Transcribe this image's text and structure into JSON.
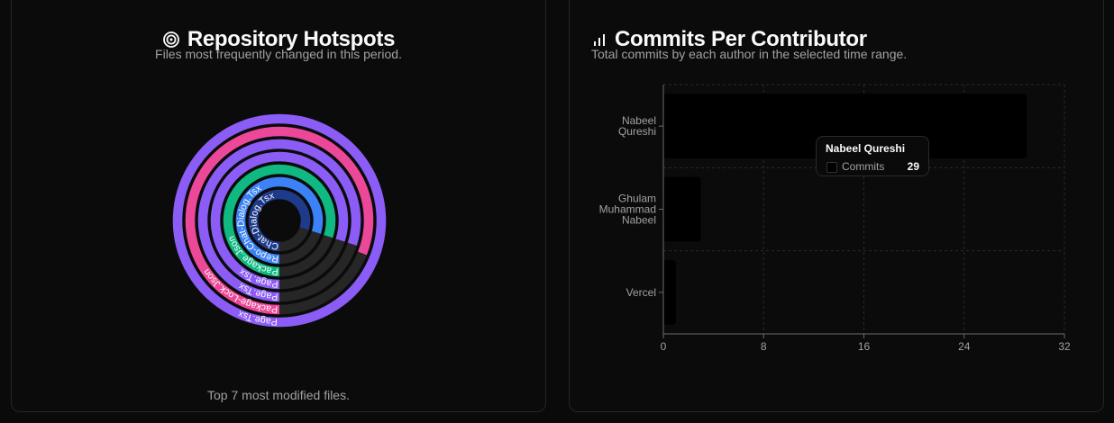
{
  "hotspots": {
    "title": "Repository Hotspots",
    "subtitle": "Files most frequently changed in this period.",
    "footer": "Top 7 most modified files.",
    "icon": "target-icon",
    "chart_data": {
      "type": "radial-bar",
      "title": "",
      "rings_outer_to_inner": [
        {
          "label": "Page.Tsx",
          "fraction": 1.0,
          "color": "#8b5cf6"
        },
        {
          "label": "Package-Lock.Json",
          "fraction": 0.81,
          "color": "#ec4899"
        },
        {
          "label": "Page.Tsx",
          "fraction": 0.8,
          "color": "#8b5cf6"
        },
        {
          "label": "Page.Tsx",
          "fraction": 0.8,
          "color": "#8b5cf6"
        },
        {
          "label": "Package.Json",
          "fraction": 0.8,
          "color": "#10b981"
        },
        {
          "label": "Repo-Chat-Dialog.Tsx",
          "fraction": 0.8,
          "color": "#3b82f6"
        },
        {
          "label": "Chat-Dialog.Tsx",
          "fraction": 0.8,
          "color": "#1e3a8a"
        }
      ],
      "track_color": "#262626"
    }
  },
  "commits": {
    "title": "Commits Per Contributor",
    "subtitle": "Total commits by each author in the selected time range.",
    "icon": "bar-chart-icon",
    "chart_data": {
      "type": "bar",
      "orientation": "horizontal",
      "categories": [
        "Nabeel Qureshi",
        "Ghulam Muhammad Nabeel",
        "Vercel"
      ],
      "category_lines": [
        [
          "Nabeel",
          "Qureshi"
        ],
        [
          "Ghulam",
          "Muhammad",
          "Nabeel"
        ],
        [
          "Vercel"
        ]
      ],
      "values": [
        29,
        3,
        1
      ],
      "xlim": [
        0,
        32
      ],
      "xticks": [
        "0",
        "8",
        "16",
        "24",
        "32"
      ],
      "grid": true,
      "bar_color": "#000000"
    },
    "tooltip": {
      "title": "Nabeel Qureshi",
      "key": "Commits",
      "value": "29"
    }
  }
}
